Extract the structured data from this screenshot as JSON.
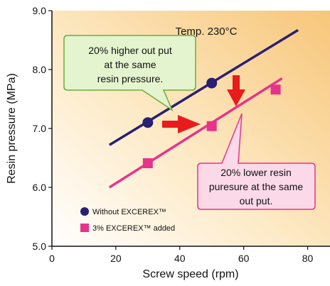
{
  "chart_data": {
    "type": "scatter",
    "xlabel": "Screw speed (rpm)",
    "ylabel": "Resin pressure (MPa)",
    "xlim": [
      0,
      87
    ],
    "ylim": [
      5.0,
      9.0
    ],
    "xticks": [
      "0",
      "20",
      "40",
      "60",
      "80"
    ],
    "yticks": [
      "5.0",
      "6.0",
      "7.0",
      "8.0",
      "9.0"
    ],
    "grid": false,
    "legend_position": "bottom-left",
    "series": [
      {
        "name": "Without EXCEREX™",
        "color": "#2a1f73",
        "marker": "circle",
        "x": [
          30,
          50
        ],
        "y": [
          7.1,
          7.77
        ],
        "fit_line": {
          "x": [
            18,
            77
          ],
          "y": [
            6.72,
            8.67
          ]
        }
      },
      {
        "name": "3% EXCEREX™ added",
        "color": "#e8338a",
        "marker": "square",
        "x": [
          30,
          50,
          70
        ],
        "y": [
          6.41,
          7.04,
          7.66
        ],
        "fit_line": {
          "x": [
            18,
            72
          ],
          "y": [
            6.0,
            7.85
          ]
        }
      }
    ],
    "annotations": {
      "temperature": "Temp. 230°C",
      "box_green": [
        "20% higher out put",
        "at the same",
        "resin pressure."
      ],
      "box_pink": [
        "20% lower resin",
        "puresure at the same",
        "out put."
      ]
    }
  },
  "colors": {
    "plot_bg_light": "#ffffff",
    "plot_bg_warm": "#f7c67a",
    "arrow": "#e81c1c",
    "green_box_fill": "#e4f4cf",
    "green_box_stroke": "#6cab3c",
    "pink_box_fill": "#fbd9e8",
    "pink_box_stroke": "#e8338a"
  }
}
